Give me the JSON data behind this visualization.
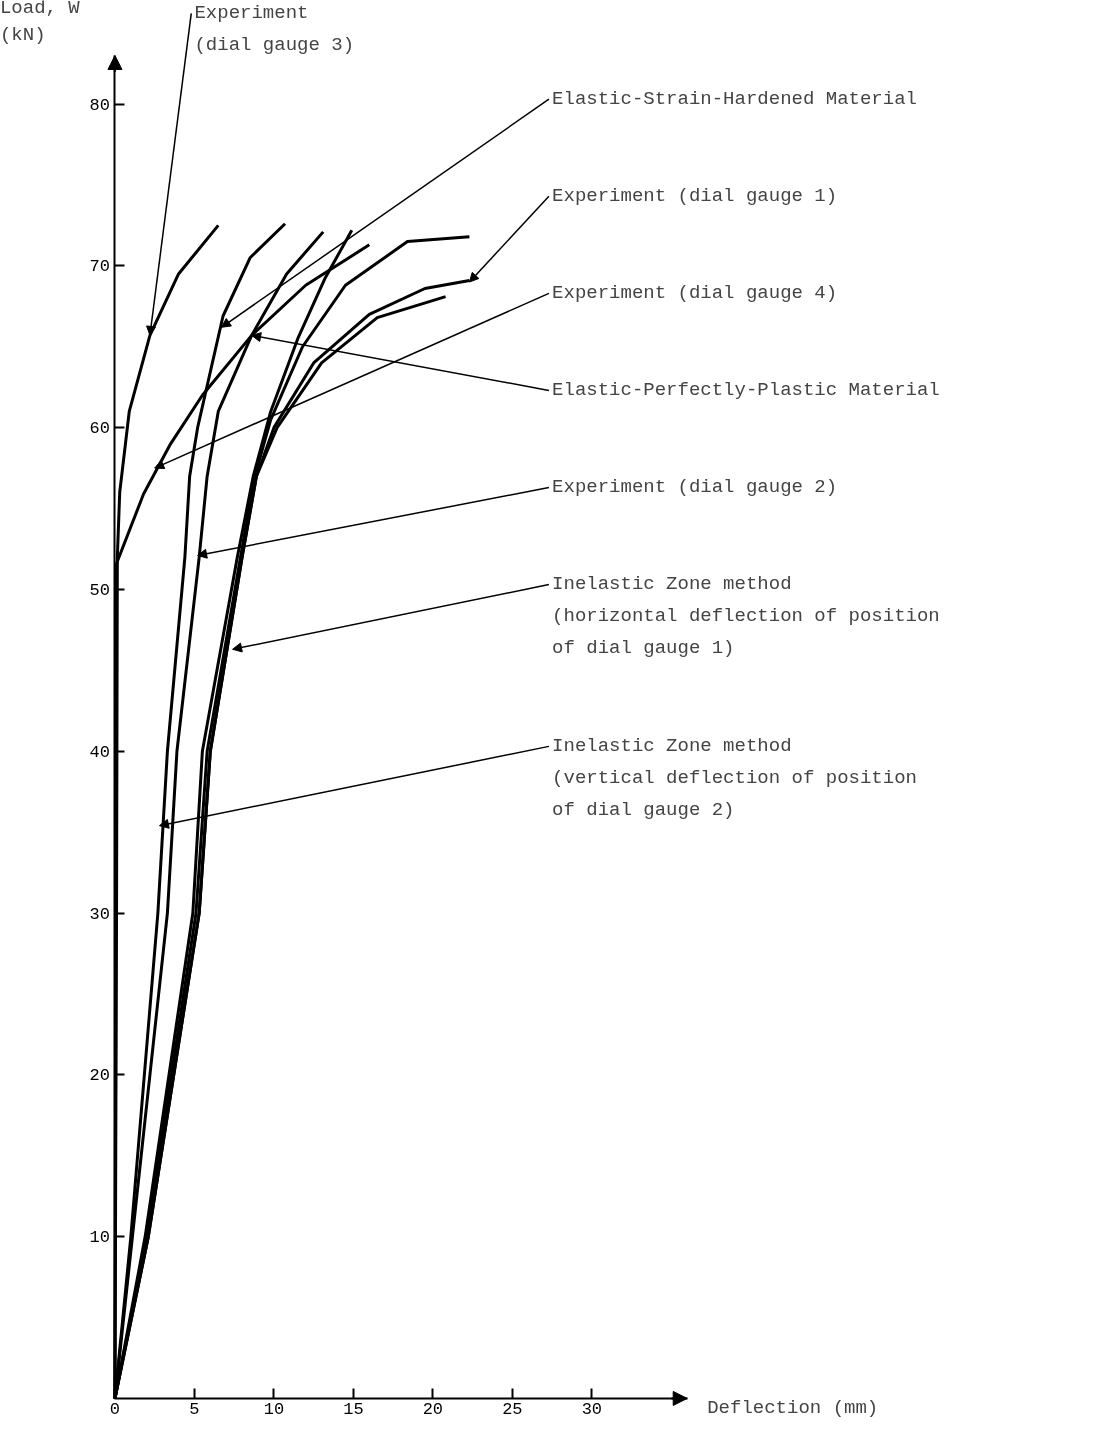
{
  "chart_data": {
    "type": "line",
    "xlabel": "Deflection (mm)",
    "ylabel": "Load, W\n(kN)",
    "xlim": [
      0,
      36
    ],
    "ylim": [
      0,
      83
    ],
    "xticks": [
      0,
      5,
      10,
      15,
      20,
      25,
      30
    ],
    "yticks": [
      10,
      20,
      30,
      40,
      50,
      60,
      70,
      80
    ],
    "grid": false,
    "series": [
      {
        "color": "#000000",
        "x": [
          0,
          0.1,
          0.15,
          0.3,
          0.9,
          2.2,
          4,
          6.5
        ],
        "values": [
          0,
          30,
          52,
          56,
          61,
          65.7,
          69.5,
          72.5
        ]
      },
      {
        "color": "#000000",
        "x": [
          0,
          0.1,
          1.8,
          3.5,
          5.5,
          8.6,
          12,
          16
        ],
        "values": [
          0,
          51.6,
          55.9,
          59,
          62,
          65.7,
          68.8,
          71.3
        ]
      },
      {
        "color": "#000000",
        "x": [
          0,
          1,
          2.7,
          3.3,
          4.4,
          4.7,
          5.2,
          6.8,
          8.5,
          10.7
        ],
        "values": [
          0,
          10,
          30,
          40,
          52,
          57,
          60,
          66.9,
          70.5,
          72.6
        ]
      },
      {
        "color": "#000000",
        "x": [
          0,
          1.1,
          3.3,
          3.9,
          5.3,
          5.8,
          6.5,
          8.6,
          10.8,
          13.1
        ],
        "values": [
          0,
          10,
          30,
          40,
          52,
          57,
          61,
          65.7,
          69.5,
          72.1
        ]
      },
      {
        "color": "#000000",
        "x": [
          0,
          1.9,
          4.9,
          5.5,
          7.7,
          8.7,
          9.8,
          11.5,
          13.2,
          14.9
        ],
        "values": [
          0,
          10,
          30,
          40,
          52,
          57,
          61,
          65.5,
          69.2,
          72.2
        ]
      },
      {
        "color": "#000000",
        "x": [
          0,
          2,
          5.1,
          5.8,
          7.9,
          8.8,
          9.8,
          11.8,
          14.5,
          18.4,
          22.3
        ],
        "values": [
          0,
          10,
          30,
          40,
          52,
          57,
          60.5,
          65,
          68.8,
          71.5,
          71.8
        ]
      },
      {
        "color": "#000000",
        "x": [
          0,
          2.1,
          5.3,
          6,
          8,
          8.9,
          10,
          12.5,
          16,
          19.5,
          22.3
        ],
        "values": [
          0,
          10,
          30,
          40,
          52,
          57,
          60,
          64,
          67,
          68.6,
          69.1
        ]
      },
      {
        "color": "#000000",
        "x": [
          0,
          2.1,
          5.3,
          6,
          8,
          8.9,
          10.2,
          13,
          16.5,
          20.8
        ],
        "values": [
          0,
          10,
          30,
          40,
          52,
          57,
          60,
          64,
          66.8,
          68.1
        ]
      }
    ],
    "annotations": [
      {
        "text": "Experiment\n(dial gauge 3)",
        "x": 2.2,
        "y": 65.7
      },
      {
        "text": "Elastic-Strain-Hardened Material",
        "x": 6.7,
        "y": 66.2
      },
      {
        "text": "Experiment (dial gauge 1)",
        "x": 22.3,
        "y": 69.0
      },
      {
        "text": "Experiment (dial gauge 4)",
        "x": 2.5,
        "y": 57.5
      },
      {
        "text": "Elastic-Perfectly-Plastic Material",
        "x": 8.6,
        "y": 65.7
      },
      {
        "text": "Experiment (dial gauge 2)",
        "x": 5.2,
        "y": 52.1
      },
      {
        "text": "Inelastic Zone method\n(horizontal deflection of position\nof dial gauge 1)",
        "x": 7.4,
        "y": 46.3
      },
      {
        "text": "Inelastic Zone method\n(vertical deflection of position\nof dial gauge 2)",
        "x": 2.8,
        "y": 35.4
      }
    ]
  }
}
